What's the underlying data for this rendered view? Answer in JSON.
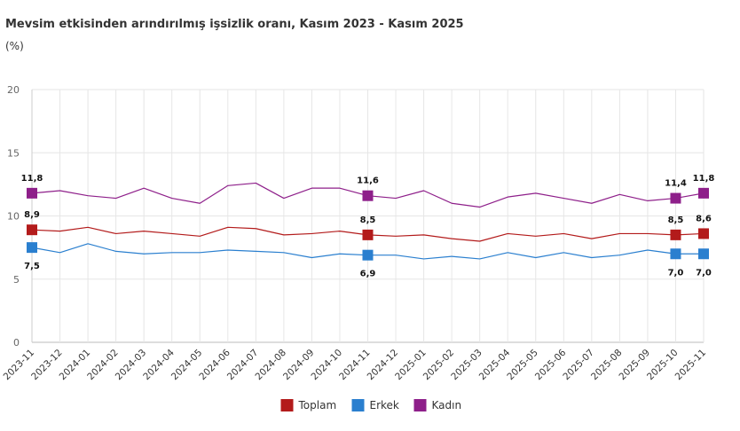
{
  "chart_data": {
    "type": "line",
    "title": "Mevsim etkisinden arındırılmış işsizlik oranı, Kasım 2023 - Kasım 2025",
    "subtitle": "(%)",
    "ylim": [
      0,
      20
    ],
    "yticks": [
      "0",
      "5",
      "10",
      "15",
      "20"
    ],
    "grid": true,
    "legend_position": "bottom-center",
    "categories": [
      "2023-11",
      "2023-12",
      "2024-01",
      "2024-02",
      "2024-03",
      "2024-04",
      "2024-05",
      "2024-06",
      "2024-07",
      "2024-08",
      "2024-09",
      "2024-10",
      "2024-11",
      "2024-12",
      "2025-01",
      "2025-02",
      "2025-03",
      "2025-04",
      "2025-05",
      "2025-06",
      "2025-07",
      "2025-08",
      "2025-09",
      "2025-10",
      "2025-11"
    ],
    "series": [
      {
        "name": "Toplam",
        "color": "#b31b1b",
        "values": [
          8.9,
          8.8,
          9.1,
          8.6,
          8.8,
          8.6,
          8.4,
          9.1,
          9.0,
          8.5,
          8.6,
          8.8,
          8.5,
          8.4,
          8.5,
          8.2,
          8.0,
          8.6,
          8.4,
          8.6,
          8.2,
          8.6,
          8.6,
          8.5,
          8.6
        ],
        "labels": [
          {
            "index": 0,
            "text": "8,9",
            "pos": "above"
          },
          {
            "index": 12,
            "text": "8,5",
            "pos": "above"
          },
          {
            "index": 23,
            "text": "8,5",
            "pos": "above"
          },
          {
            "index": 24,
            "text": "8,6",
            "pos": "above"
          }
        ]
      },
      {
        "name": "Erkek",
        "color": "#2a7fcf",
        "values": [
          7.5,
          7.1,
          7.8,
          7.2,
          7.0,
          7.1,
          7.1,
          7.3,
          7.2,
          7.1,
          6.7,
          7.0,
          6.9,
          6.9,
          6.6,
          6.8,
          6.6,
          7.1,
          6.7,
          7.1,
          6.7,
          6.9,
          7.3,
          7.0,
          7.0
        ],
        "labels": [
          {
            "index": 0,
            "text": "7,5",
            "pos": "below"
          },
          {
            "index": 12,
            "text": "6,9",
            "pos": "below"
          },
          {
            "index": 23,
            "text": "7,0",
            "pos": "below"
          },
          {
            "index": 24,
            "text": "7,0",
            "pos": "below"
          }
        ]
      },
      {
        "name": "Kadın",
        "color": "#8e1f8a",
        "values": [
          11.8,
          12.0,
          11.6,
          11.4,
          12.2,
          11.4,
          11.0,
          12.4,
          12.6,
          11.4,
          12.2,
          12.2,
          11.6,
          11.4,
          12.0,
          11.0,
          10.7,
          11.5,
          11.8,
          11.4,
          11.0,
          11.7,
          11.2,
          11.4,
          11.8
        ],
        "labels": [
          {
            "index": 0,
            "text": "11,8",
            "pos": "above"
          },
          {
            "index": 12,
            "text": "11,6",
            "pos": "above"
          },
          {
            "index": 23,
            "text": "11,4",
            "pos": "above"
          },
          {
            "index": 24,
            "text": "11,8",
            "pos": "above"
          }
        ]
      }
    ]
  }
}
